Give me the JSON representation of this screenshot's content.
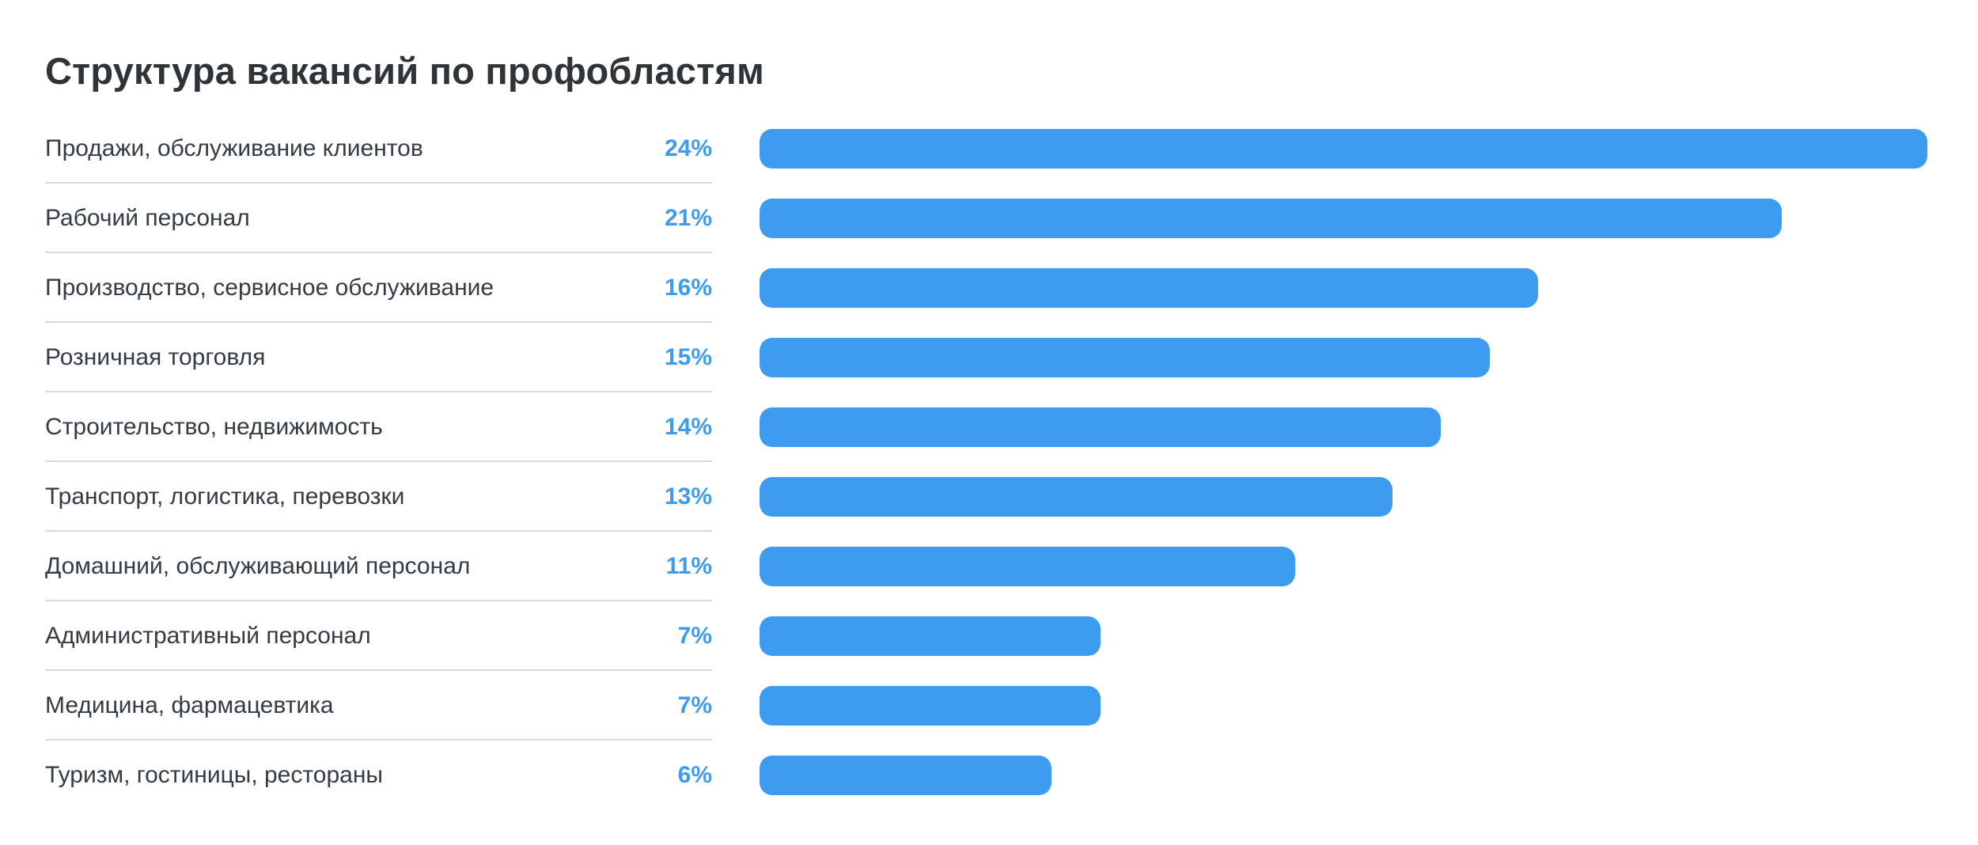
{
  "page": {
    "background": "#ffffff"
  },
  "chart_data": {
    "type": "bar",
    "orientation": "horizontal",
    "title": "Структура вакансий по профобластям",
    "categories": [
      "Продажи, обслуживание клиентов",
      "Рабочий персонал",
      "Производство, сервисное обслуживание",
      "Розничная торговля",
      "Строительство, недвижимость",
      "Транспорт, логистика, перевозки",
      "Домашний, обслуживающий персонал",
      "Административный персонал",
      "Медицина, фармацевтика",
      "Туризм, гостиницы, рестораны"
    ],
    "values": [
      24,
      21,
      16,
      15,
      14,
      13,
      11,
      7,
      7,
      6
    ],
    "value_labels": [
      "24%",
      "21%",
      "16%",
      "15%",
      "14%",
      "13%",
      "11%",
      "7%",
      "7%",
      "6%"
    ],
    "xlim": [
      0,
      24
    ],
    "grid": false,
    "legend": false,
    "bar_color": "#3d9bf0",
    "value_label_color": "#3d9bf0",
    "category_label_color": "#333b44",
    "title_color": "#2f3438",
    "divider_color": "#d9d9d9"
  }
}
